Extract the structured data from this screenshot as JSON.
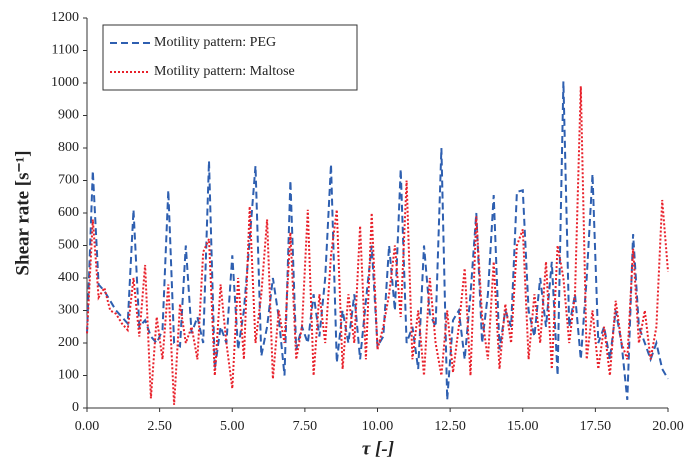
{
  "chart_data": {
    "type": "line",
    "xlabel": "τ [-]",
    "ylabel": "Shear rate [s⁻¹]",
    "x": [
      0,
      0.2,
      0.4,
      0.6,
      0.8,
      1,
      1.2,
      1.4,
      1.6,
      1.8,
      2,
      2.2,
      2.4,
      2.6,
      2.8,
      3,
      3.2,
      3.4,
      3.6,
      3.8,
      4,
      4.2,
      4.4,
      4.6,
      4.8,
      5,
      5.2,
      5.4,
      5.6,
      5.8,
      6,
      6.2,
      6.4,
      6.6,
      6.8,
      7,
      7.2,
      7.4,
      7.6,
      7.8,
      8,
      8.2,
      8.4,
      8.6,
      8.8,
      9,
      9.2,
      9.4,
      9.6,
      9.8,
      10,
      10.2,
      10.4,
      10.6,
      10.8,
      11,
      11.2,
      11.4,
      11.6,
      11.8,
      12,
      12.2,
      12.4,
      12.6,
      12.8,
      13,
      13.2,
      13.4,
      13.6,
      13.8,
      14,
      14.2,
      14.4,
      14.6,
      14.8,
      15,
      15.2,
      15.4,
      15.6,
      15.8,
      16,
      16.2,
      16.4,
      16.6,
      16.8,
      17,
      17.2,
      17.4,
      17.6,
      17.8,
      18,
      18.2,
      18.4,
      18.6,
      18.8,
      19,
      19.2,
      19.4,
      19.6,
      19.8,
      20
    ],
    "series": [
      {
        "name": "Motility pattern: PEG",
        "color": "#2e5fb0",
        "dash": "dashed",
        "values": [
          230,
          730,
          380,
          360,
          330,
          300,
          280,
          260,
          610,
          250,
          270,
          220,
          200,
          240,
          670,
          200,
          190,
          500,
          230,
          280,
          200,
          760,
          120,
          250,
          200,
          470,
          180,
          300,
          520,
          745,
          160,
          250,
          400,
          280,
          100,
          700,
          180,
          250,
          200,
          350,
          220,
          400,
          750,
          140,
          300,
          200,
          350,
          150,
          330,
          500,
          190,
          220,
          500,
          300,
          735,
          200,
          250,
          120,
          500,
          290,
          250,
          800,
          25,
          270,
          300,
          150,
          350,
          600,
          200,
          350,
          655,
          180,
          300,
          250,
          665,
          670,
          300,
          220,
          400,
          250,
          450,
          100,
          1005,
          250,
          350,
          150,
          400,
          720,
          200,
          250,
          150,
          300,
          200,
          25,
          535,
          250,
          200,
          150,
          200,
          120,
          90
        ]
      },
      {
        "name": "Motility pattern: Maltose",
        "color": "#e8202a",
        "dash": "dotted",
        "values": [
          230,
          580,
          340,
          370,
          300,
          290,
          260,
          240,
          400,
          220,
          440,
          30,
          280,
          150,
          380,
          10,
          320,
          200,
          250,
          150,
          480,
          520,
          100,
          380,
          200,
          60,
          400,
          150,
          620,
          200,
          350,
          580,
          90,
          300,
          200,
          540,
          150,
          250,
          610,
          100,
          350,
          200,
          470,
          610,
          120,
          350,
          200,
          560,
          150,
          600,
          180,
          250,
          350,
          500,
          280,
          700,
          150,
          300,
          100,
          400,
          200,
          100,
          300,
          110,
          250,
          430,
          100,
          590,
          280,
          150,
          450,
          120,
          320,
          200,
          500,
          550,
          150,
          350,
          200,
          450,
          120,
          500,
          400,
          200,
          350,
          990,
          150,
          300,
          120,
          250,
          100,
          330,
          200,
          150,
          490,
          200,
          300,
          150,
          250,
          640,
          420
        ]
      }
    ],
    "xlim": [
      0,
      20
    ],
    "xticks": [
      {
        "value": 0,
        "label": "0.00"
      },
      {
        "value": 2.5,
        "label": "2.50"
      },
      {
        "value": 5,
        "label": "5.00"
      },
      {
        "value": 7.5,
        "label": "7.50"
      },
      {
        "value": 10,
        "label": "10.00"
      },
      {
        "value": 12.5,
        "label": "12.50"
      },
      {
        "value": 15,
        "label": "15.00"
      },
      {
        "value": 17.5,
        "label": "17.50"
      },
      {
        "value": 20,
        "label": "20.00"
      }
    ],
    "ylim": [
      0,
      1200
    ],
    "yticks": [
      0,
      100,
      200,
      300,
      400,
      500,
      600,
      700,
      800,
      900,
      1000,
      1100,
      1200
    ],
    "grid": false,
    "legend": "upper left"
  }
}
